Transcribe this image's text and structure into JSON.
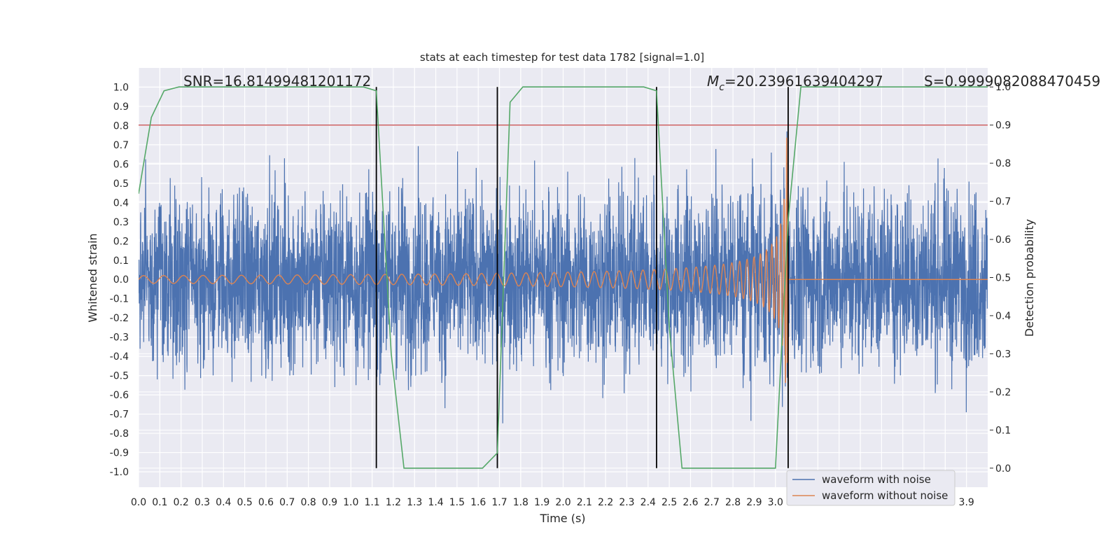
{
  "chart_data": {
    "type": "line",
    "title": "stats at each timestep for test data 1782 [signal=1.0]",
    "xlabel": "Time (s)",
    "ylabel": "Whitened strain",
    "y2label": "Detection probability",
    "xlim": [
      0.0,
      4.0
    ],
    "ylim": [
      -1.08,
      1.1
    ],
    "y2lim": [
      -0.05,
      1.05
    ],
    "xticks": [
      "0.0",
      "0.1",
      "0.2",
      "0.3",
      "0.4",
      "0.5",
      "0.6",
      "0.7",
      "0.8",
      "0.9",
      "1.0",
      "1.1",
      "1.2",
      "1.3",
      "1.4",
      "1.5",
      "1.6",
      "1.7",
      "1.8",
      "1.9",
      "2.0",
      "2.1",
      "2.2",
      "2.3",
      "2.4",
      "2.5",
      "2.6",
      "2.7",
      "2.8",
      "2.9",
      "3.0",
      "3.1",
      "3.2",
      "3.3",
      "3.4",
      "3.5",
      "3.6",
      "3.7",
      "3.8",
      "3.9"
    ],
    "yticks": [
      "1.0",
      "0.9",
      "0.8",
      "0.7",
      "0.6",
      "0.5",
      "0.4",
      "0.3",
      "0.2",
      "0.1",
      "0.0",
      "-0.1",
      "-0.2",
      "-0.3",
      "-0.4",
      "-0.5",
      "-0.6",
      "-0.7",
      "-0.8",
      "-0.9",
      "-1.0"
    ],
    "y2ticks": [
      "1.0",
      "0.9",
      "0.8",
      "0.7",
      "0.6",
      "0.5",
      "0.4",
      "0.3",
      "0.2",
      "0.1",
      "0.0"
    ],
    "grid": true,
    "annotations": {
      "snr": "SNR=16.81499481201172",
      "mc_symbol": "M",
      "mc_sub": "c",
      "mc_value": "=20.23961639404297",
      "s": "S=0.9999082088470459"
    },
    "threshold": {
      "value": 0.9,
      "axis": "y2",
      "color": "#c44e52"
    },
    "vlines": [
      1.12,
      1.69,
      2.44,
      3.06
    ],
    "series": [
      {
        "name": "waveform with noise",
        "color": "#4c72b0",
        "kind": "noise",
        "approx_amplitude": 0.55,
        "points": 4000
      },
      {
        "name": "waveform without noise",
        "color": "#dd8452",
        "kind": "chirp",
        "merger_time": 3.06,
        "start_amplitude": 0.02,
        "peak_amplitude": 0.75
      },
      {
        "name": "detection probability",
        "color": "#55a868",
        "axis": "y2",
        "t": [
          0.0,
          0.06,
          0.12,
          0.19,
          0.25,
          1.06,
          1.12,
          1.19,
          1.25,
          1.31,
          1.38,
          1.5,
          1.62,
          1.69,
          1.75,
          1.81,
          1.88,
          2.38,
          2.44,
          2.5,
          2.56,
          2.62,
          2.69,
          3.0,
          3.06,
          3.12,
          3.19,
          3.5,
          4.0
        ],
        "p": [
          0.72,
          0.92,
          0.99,
          1.0,
          1.0,
          1.0,
          0.99,
          0.3,
          0.0,
          0.0,
          0.0,
          0.0,
          0.0,
          0.04,
          0.96,
          1.0,
          1.0,
          1.0,
          0.99,
          0.37,
          0.0,
          0.0,
          0.0,
          0.0,
          0.65,
          1.0,
          1.0,
          1.0,
          1.0
        ]
      }
    ],
    "legend": {
      "placement": "lower-right",
      "entries": [
        "waveform with noise",
        "waveform without noise"
      ]
    }
  }
}
